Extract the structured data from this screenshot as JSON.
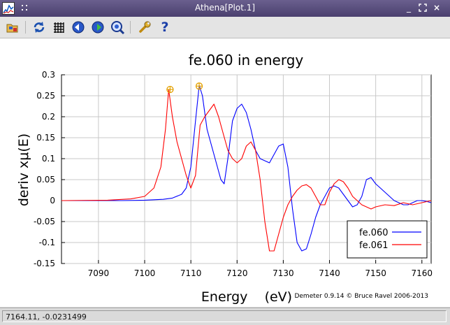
{
  "window": {
    "title": "Athena[Plot.1]",
    "controls": [
      "_",
      "□",
      "×"
    ]
  },
  "toolbar": {
    "tools": [
      {
        "name": "open-icon"
      },
      {
        "name": "refresh-icon"
      },
      {
        "name": "grid-icon"
      },
      {
        "name": "back-icon"
      },
      {
        "name": "forward-icon"
      },
      {
        "name": "zoom-icon"
      },
      {
        "name": "wrench-icon"
      },
      {
        "name": "help-icon",
        "label": "?"
      }
    ]
  },
  "chart_data": {
    "type": "line",
    "title": "fe.060 in energy",
    "xlabel": "Energy    (eV)",
    "ylabel": "deriv xμ(E)",
    "xlim": [
      7082,
      7162
    ],
    "ylim": [
      -0.15,
      0.3
    ],
    "xticks": [
      7090,
      7100,
      7110,
      7120,
      7130,
      7140,
      7150,
      7160
    ],
    "yticks": [
      -0.15,
      -0.1,
      -0.05,
      0,
      0.05,
      0.1,
      0.15,
      0.2,
      0.25,
      0.3
    ],
    "ytick_labels": [
      "-0.15",
      "-0.1",
      "-0.05",
      "0",
      "0.05",
      "0.1",
      "0.15",
      "0.2",
      "0.25",
      "0.3"
    ],
    "grid": true,
    "legend": "bottom-right",
    "watermark": "Demeter 0.9.14 © Bruce Ravel 2006-2013",
    "series": [
      {
        "name": "fe.060",
        "color": "#0000ff",
        "x": [
          7082,
          7095,
          7100,
          7104,
          7106,
          7108,
          7109,
          7110,
          7111,
          7111.8,
          7112.5,
          7113.5,
          7114.5,
          7115.5,
          7116.5,
          7117.2,
          7118,
          7119,
          7120,
          7121,
          7122,
          7123,
          7124,
          7125,
          7126,
          7127,
          7128,
          7129,
          7130,
          7131,
          7132,
          7133,
          7134,
          7135,
          7136,
          7137,
          7138,
          7139,
          7140,
          7141,
          7142,
          7143,
          7144,
          7145,
          7146,
          7147,
          7148,
          7149,
          7150,
          7151,
          7152,
          7153,
          7154,
          7155,
          7156,
          7157,
          7158,
          7159,
          7160,
          7161,
          7162
        ],
        "y": [
          0,
          0,
          0.001,
          0.003,
          0.006,
          0.015,
          0.03,
          0.08,
          0.19,
          0.275,
          0.25,
          0.17,
          0.13,
          0.09,
          0.05,
          0.04,
          0.1,
          0.19,
          0.22,
          0.23,
          0.21,
          0.17,
          0.12,
          0.1,
          0.095,
          0.09,
          0.11,
          0.13,
          0.135,
          0.08,
          -0.02,
          -0.1,
          -0.12,
          -0.115,
          -0.08,
          -0.04,
          -0.01,
          0.01,
          0.03,
          0.035,
          0.03,
          0.015,
          0,
          -0.015,
          -0.01,
          0.01,
          0.05,
          0.055,
          0.04,
          0.03,
          0.02,
          0.01,
          0,
          -0.005,
          -0.01,
          -0.01,
          -0.005,
          0.0,
          0.0,
          -0.002,
          -0.005
        ]
      },
      {
        "name": "fe.061",
        "color": "#ff0000",
        "x": [
          7082,
          7092,
          7097,
          7100,
          7102,
          7103.5,
          7104.5,
          7105.2,
          7106,
          7107,
          7108,
          7109,
          7110,
          7111,
          7112,
          7113,
          7114,
          7115,
          7116,
          7117,
          7118,
          7119,
          7120,
          7121,
          7122,
          7123,
          7124,
          7125,
          7126,
          7127,
          7128,
          7129,
          7130,
          7131,
          7132,
          7133,
          7134,
          7135,
          7136,
          7137,
          7138,
          7139,
          7140,
          7141,
          7142,
          7143,
          7144,
          7145,
          7146,
          7147,
          7148,
          7149,
          7150,
          7152,
          7154,
          7156,
          7158,
          7160,
          7162
        ],
        "y": [
          0,
          0.001,
          0.004,
          0.01,
          0.03,
          0.08,
          0.17,
          0.265,
          0.2,
          0.14,
          0.1,
          0.06,
          0.03,
          0.06,
          0.18,
          0.2,
          0.215,
          0.23,
          0.2,
          0.16,
          0.12,
          0.1,
          0.09,
          0.1,
          0.13,
          0.14,
          0.12,
          0.05,
          -0.05,
          -0.12,
          -0.12,
          -0.08,
          -0.04,
          -0.01,
          0.01,
          0.025,
          0.035,
          0.038,
          0.03,
          0.01,
          -0.01,
          -0.01,
          0.02,
          0.04,
          0.05,
          0.045,
          0.03,
          0.01,
          0,
          -0.01,
          -0.015,
          -0.02,
          -0.015,
          -0.01,
          -0.012,
          -0.005,
          -0.01,
          -0.005,
          0
        ]
      }
    ],
    "markers": [
      {
        "series": "fe.061",
        "x": 7105.5,
        "y": 0.265,
        "color": "#e3a000"
      },
      {
        "series": "fe.060",
        "x": 7111.8,
        "y": 0.273,
        "color": "#e3a000"
      }
    ]
  },
  "statusbar": {
    "text": "7164.11, -0.0231499"
  }
}
